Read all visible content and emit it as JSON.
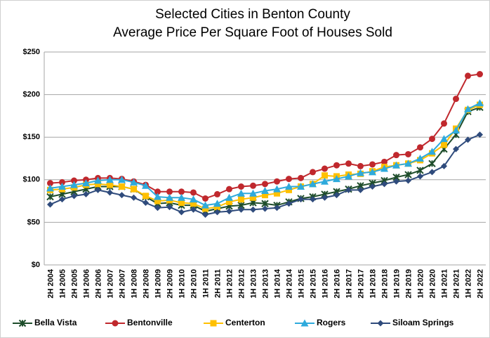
{
  "chart_data": {
    "type": "line",
    "title": "Selected Cities in Benton County",
    "subtitle": "Average Price Per Square Foot of Houses Sold",
    "categories": [
      "2H 2004",
      "1H 2005",
      "2H 2005",
      "1H 2006",
      "2H 2006",
      "1H 2007",
      "2H 2007",
      "1H 2008",
      "2H 2008",
      "1H 2009",
      "2H 2009",
      "1H 2010",
      "2H 2010",
      "1H 2011",
      "2H 2011",
      "1H 2012",
      "2H 2012",
      "1H 2013",
      "2H 2013",
      "1H 2014",
      "2H 2014",
      "1H 2015",
      "2H 2015",
      "1H 2016",
      "2H 2016",
      "1H 2017",
      "2H 2017",
      "1H 2018",
      "2H 2018",
      "1H 2019",
      "2H 2019",
      "1H 2020",
      "2H 2020",
      "1H 2021",
      "2H 2021",
      "1H 2022",
      "2H 2022"
    ],
    "series": [
      {
        "name": "Bella Vista",
        "color": "#1e4d2b",
        "marker": "star",
        "values": [
          80,
          83,
          86,
          89,
          92,
          92,
          92,
          89,
          80,
          72,
          73,
          70,
          70,
          63,
          66,
          69,
          70,
          73,
          72,
          70,
          74,
          78,
          80,
          83,
          86,
          89,
          93,
          96,
          99,
          103,
          106,
          111,
          119,
          136,
          153,
          180,
          185
        ]
      },
      {
        "name": "Bentonville",
        "color": "#c0282d",
        "marker": "circle",
        "values": [
          96,
          97,
          99,
          100,
          102,
          102,
          101,
          98,
          94,
          86,
          86,
          86,
          85,
          78,
          83,
          89,
          92,
          93,
          95,
          98,
          101,
          102,
          109,
          113,
          117,
          119,
          116,
          118,
          121,
          129,
          130,
          138,
          148,
          166,
          195,
          222,
          224
        ]
      },
      {
        "name": "Centerton",
        "color": "#ffc000",
        "marker": "square",
        "values": [
          88,
          89,
          91,
          94,
          95,
          94,
          92,
          89,
          81,
          75,
          76,
          73,
          72,
          66,
          68,
          74,
          77,
          79,
          82,
          84,
          88,
          92,
          95,
          105,
          104,
          106,
          107,
          110,
          115,
          117,
          119,
          123,
          131,
          141,
          160,
          182,
          188
        ]
      },
      {
        "name": "Rogers",
        "color": "#2eaadc",
        "marker": "triangle",
        "values": [
          90,
          92,
          94,
          96,
          99,
          100,
          100,
          97,
          93,
          80,
          79,
          79,
          77,
          70,
          72,
          79,
          84,
          84,
          87,
          89,
          92,
          92,
          95,
          98,
          101,
          104,
          108,
          109,
          113,
          117,
          119,
          125,
          133,
          148,
          158,
          183,
          190
        ]
      },
      {
        "name": "Siloam Springs",
        "color": "#2f4b7c",
        "marker": "diamond",
        "values": [
          71,
          77,
          81,
          83,
          88,
          85,
          82,
          79,
          73,
          67,
          68,
          62,
          65,
          59,
          62,
          63,
          65,
          65,
          66,
          67,
          72,
          77,
          77,
          79,
          82,
          88,
          88,
          92,
          95,
          98,
          99,
          104,
          109,
          116,
          136,
          147,
          153
        ]
      }
    ],
    "ylim": [
      0,
      250
    ],
    "yticks": [
      {
        "value": 0,
        "label": "$0"
      },
      {
        "value": 50,
        "label": "$50"
      },
      {
        "value": 100,
        "label": "$100"
      },
      {
        "value": 150,
        "label": "$150"
      },
      {
        "value": 200,
        "label": "$200"
      },
      {
        "value": 250,
        "label": "$250"
      }
    ],
    "grid": true,
    "legend": "bottom"
  }
}
